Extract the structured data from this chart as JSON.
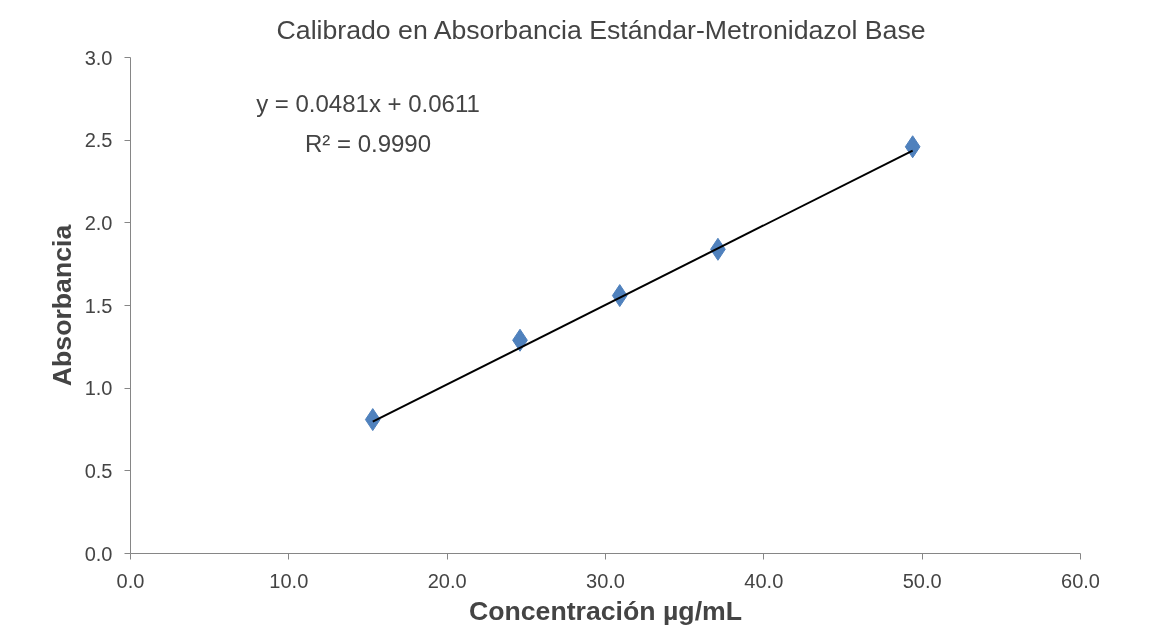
{
  "chart_data": {
    "type": "scatter",
    "title": "Calibrado en Absorbancia Estándar-Metronidazol  Base",
    "xlabel": "Concentración µg/mL",
    "ylabel": "Absorbancia",
    "annotations": [
      "y = 0.0481x + 0.0611",
      "R² = 0.9990"
    ],
    "series": [
      {
        "color": "#4f81bd",
        "marker": "diamond",
        "x": [
          15.3,
          24.6,
          30.9,
          37.1,
          49.4
        ],
        "values": [
          0.81,
          1.29,
          1.56,
          1.84,
          2.46
        ]
      },
      {
        "type": "line",
        "color": "#000000",
        "marker": "none",
        "line_style": "solid",
        "x": [
          15.3,
          49.4
        ],
        "values": [
          0.797,
          2.437
        ]
      }
    ],
    "xlim": [
      0,
      60
    ],
    "ylim": [
      0,
      3
    ],
    "xticks": [
      {
        "value": 0,
        "label": "0.0"
      },
      {
        "value": 10,
        "label": "10.0"
      },
      {
        "value": 20,
        "label": "20.0"
      },
      {
        "value": 30,
        "label": "30.0"
      },
      {
        "value": 40,
        "label": "40.0"
      },
      {
        "value": 50,
        "label": "50.0"
      },
      {
        "value": 60,
        "label": "60.0"
      }
    ],
    "yticks": [
      {
        "value": 0,
        "label": "0.0"
      },
      {
        "value": 0.5,
        "label": "0.5"
      },
      {
        "value": 1,
        "label": "1.0"
      },
      {
        "value": 1.5,
        "label": "1.5"
      },
      {
        "value": 2,
        "label": "2.0"
      },
      {
        "value": 2.5,
        "label": "2.5"
      },
      {
        "value": 3,
        "label": "3.0"
      }
    ],
    "grid": false
  }
}
